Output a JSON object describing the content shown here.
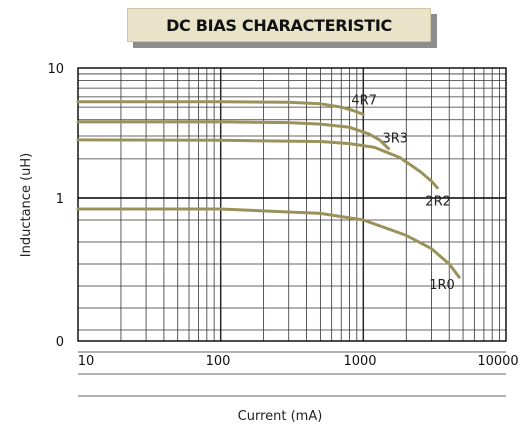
{
  "chart_data": {
    "type": "line",
    "title": "DC BIAS CHARACTERISTIC",
    "xlabel": "Current (mA)",
    "ylabel": "Inductance (uH)",
    "x_scale": "log",
    "xlim": [
      10,
      10000
    ],
    "x_ticks": [
      "10",
      "100",
      "1000",
      "10000"
    ],
    "y_ticks": [
      "10",
      "1",
      "0"
    ],
    "grid": true,
    "line_color": "#9b915a",
    "series": [
      {
        "name": "4R7",
        "x": [
          10,
          100,
          300,
          500,
          700,
          850,
          1000
        ],
        "y": [
          5.5,
          5.5,
          5.45,
          5.3,
          5.0,
          4.7,
          4.4
        ]
      },
      {
        "name": "3R3",
        "x": [
          10,
          100,
          300,
          500,
          800,
          1100,
          1300,
          1500
        ],
        "y": [
          3.85,
          3.85,
          3.8,
          3.7,
          3.5,
          3.1,
          2.8,
          2.4
        ]
      },
      {
        "name": "2R2",
        "x": [
          10,
          100,
          500,
          800,
          1200,
          1800,
          2500,
          3000,
          3300
        ],
        "y": [
          2.8,
          2.78,
          2.72,
          2.62,
          2.45,
          2.05,
          1.6,
          1.35,
          1.2
        ]
      },
      {
        "name": "1R0",
        "x": [
          10,
          100,
          500,
          1000,
          2000,
          3000,
          4000,
          4700
        ],
        "y": [
          0.95,
          0.95,
          0.93,
          0.9,
          0.83,
          0.77,
          0.7,
          0.64
        ]
      }
    ]
  }
}
